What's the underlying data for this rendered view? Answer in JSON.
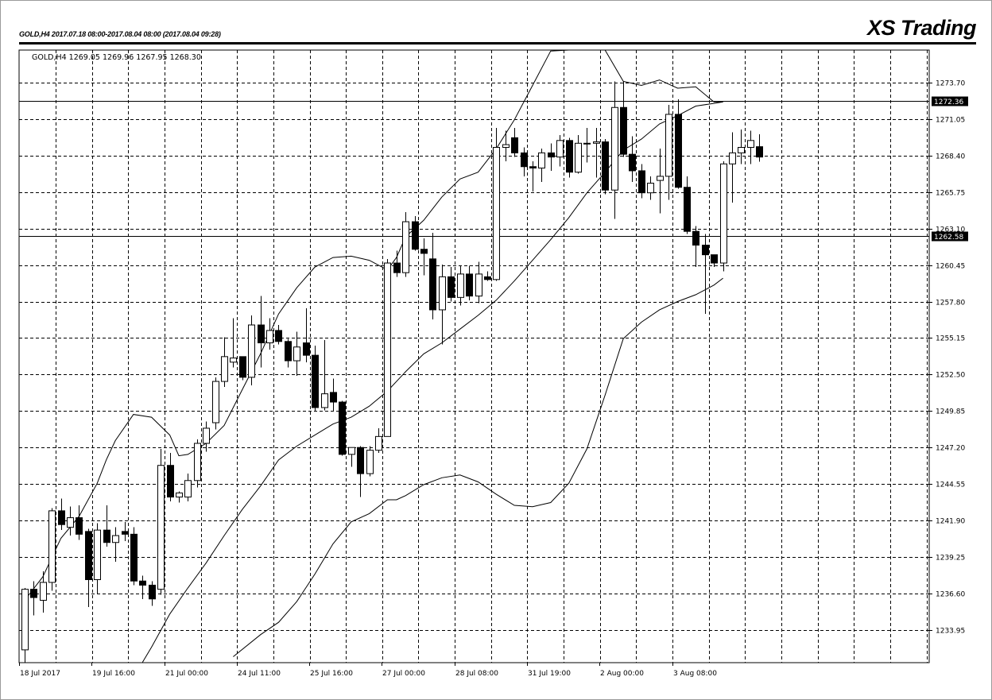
{
  "header": {
    "meta": "GOLD,H4  2017.07.18 08:00-2017.08.04 08:00  (2017.08.04 09:28)",
    "brand": "XS Trading"
  },
  "chart_data": {
    "type": "candlestick",
    "symbol_info": "GOLD,H4  1269.05 1269.96 1267.95 1268.30",
    "ylim": [
      1231.57,
      1276.07
    ],
    "y_ticks": [
      "1273.70",
      "1271.05",
      "1268.40",
      "1265.75",
      "1263.10",
      "1260.45",
      "1257.80",
      "1255.15",
      "1252.50",
      "1249.85",
      "1247.20",
      "1244.55",
      "1241.90",
      "1239.25",
      "1236.60",
      "1233.95"
    ],
    "x_tick_labels": [
      "18 Jul 2017",
      "19 Jul 16:00",
      "21 Jul 00:00",
      "24 Jul 11:00",
      "25 Jul 16:00",
      "27 Jul 00:00",
      "28 Jul 08:00",
      "31 Jul 19:00",
      "2 Aug 00:00",
      "3 Aug 08:00"
    ],
    "x_tick_index": [
      0,
      8,
      16,
      24,
      32,
      40,
      48,
      56,
      64,
      72
    ],
    "horizontal_lines": [
      {
        "label": "1272.36",
        "value": 1272.36
      },
      {
        "label": "1262.58",
        "value": 1262.58
      }
    ],
    "candles": [
      {
        "o": 1232.5,
        "h": 1237.0,
        "l": 1231.6,
        "c": 1236.9
      },
      {
        "o": 1236.9,
        "h": 1237.5,
        "l": 1235.0,
        "c": 1236.3
      },
      {
        "o": 1236.1,
        "h": 1238.2,
        "l": 1235.2,
        "c": 1237.4
      },
      {
        "o": 1237.4,
        "h": 1242.8,
        "l": 1236.8,
        "c": 1242.6
      },
      {
        "o": 1242.6,
        "h": 1243.5,
        "l": 1241.2,
        "c": 1241.6
      },
      {
        "o": 1241.4,
        "h": 1242.9,
        "l": 1240.8,
        "c": 1242.1
      },
      {
        "o": 1242.1,
        "h": 1243.0,
        "l": 1240.5,
        "c": 1240.9
      },
      {
        "o": 1241.1,
        "h": 1241.3,
        "l": 1235.6,
        "c": 1237.6
      },
      {
        "o": 1237.6,
        "h": 1241.7,
        "l": 1236.6,
        "c": 1241.2
      },
      {
        "o": 1241.2,
        "h": 1243.0,
        "l": 1240.0,
        "c": 1240.3
      },
      {
        "o": 1240.3,
        "h": 1241.4,
        "l": 1238.9,
        "c": 1240.8
      },
      {
        "o": 1241.1,
        "h": 1241.8,
        "l": 1240.4,
        "c": 1240.9
      },
      {
        "o": 1240.9,
        "h": 1241.4,
        "l": 1237.2,
        "c": 1237.5
      },
      {
        "o": 1237.5,
        "h": 1237.9,
        "l": 1236.2,
        "c": 1237.2
      },
      {
        "o": 1237.2,
        "h": 1237.5,
        "l": 1235.7,
        "c": 1236.2
      },
      {
        "o": 1236.9,
        "h": 1247.1,
        "l": 1236.5,
        "c": 1245.9
      },
      {
        "o": 1245.9,
        "h": 1246.8,
        "l": 1243.3,
        "c": 1243.6
      },
      {
        "o": 1243.6,
        "h": 1244.0,
        "l": 1243.2,
        "c": 1243.9
      },
      {
        "o": 1243.6,
        "h": 1245.3,
        "l": 1243.3,
        "c": 1244.8
      },
      {
        "o": 1244.8,
        "h": 1247.8,
        "l": 1244.3,
        "c": 1247.5
      },
      {
        "o": 1247.5,
        "h": 1249.1,
        "l": 1246.9,
        "c": 1248.6
      },
      {
        "o": 1249.0,
        "h": 1252.3,
        "l": 1248.5,
        "c": 1252.0
      },
      {
        "o": 1252.0,
        "h": 1255.2,
        "l": 1251.6,
        "c": 1253.8
      },
      {
        "o": 1253.4,
        "h": 1256.6,
        "l": 1253.0,
        "c": 1253.7
      },
      {
        "o": 1253.8,
        "h": 1253.8,
        "l": 1252.1,
        "c": 1252.3
      },
      {
        "o": 1252.3,
        "h": 1256.8,
        "l": 1251.7,
        "c": 1256.1
      },
      {
        "o": 1256.1,
        "h": 1258.2,
        "l": 1253.0,
        "c": 1254.8
      },
      {
        "o": 1254.8,
        "h": 1256.6,
        "l": 1254.3,
        "c": 1255.7
      },
      {
        "o": 1255.7,
        "h": 1256.1,
        "l": 1254.7,
        "c": 1254.9
      },
      {
        "o": 1254.9,
        "h": 1255.1,
        "l": 1253.0,
        "c": 1253.5
      },
      {
        "o": 1253.5,
        "h": 1255.6,
        "l": 1252.4,
        "c": 1254.5
      },
      {
        "o": 1254.8,
        "h": 1257.3,
        "l": 1253.4,
        "c": 1253.9
      },
      {
        "o": 1253.9,
        "h": 1254.6,
        "l": 1249.8,
        "c": 1250.1
      },
      {
        "o": 1250.1,
        "h": 1255.0,
        "l": 1249.9,
        "c": 1251.1
      },
      {
        "o": 1251.2,
        "h": 1252.2,
        "l": 1249.8,
        "c": 1250.5
      },
      {
        "o": 1250.5,
        "h": 1250.6,
        "l": 1246.6,
        "c": 1246.7
      },
      {
        "o": 1246.7,
        "h": 1247.2,
        "l": 1245.8,
        "c": 1247.2
      },
      {
        "o": 1247.2,
        "h": 1247.3,
        "l": 1243.6,
        "c": 1245.3
      },
      {
        "o": 1245.3,
        "h": 1247.3,
        "l": 1245.1,
        "c": 1247.0
      },
      {
        "o": 1247.0,
        "h": 1248.6,
        "l": 1246.8,
        "c": 1248.0
      },
      {
        "o": 1248.0,
        "h": 1260.9,
        "l": 1248.0,
        "c": 1260.6
      },
      {
        "o": 1260.6,
        "h": 1261.5,
        "l": 1259.6,
        "c": 1259.9
      },
      {
        "o": 1259.9,
        "h": 1264.3,
        "l": 1259.6,
        "c": 1263.6
      },
      {
        "o": 1263.6,
        "h": 1264.0,
        "l": 1261.5,
        "c": 1261.6
      },
      {
        "o": 1261.6,
        "h": 1262.4,
        "l": 1259.7,
        "c": 1261.3
      },
      {
        "o": 1260.9,
        "h": 1262.8,
        "l": 1256.5,
        "c": 1257.2
      },
      {
        "o": 1257.2,
        "h": 1260.5,
        "l": 1254.7,
        "c": 1259.6
      },
      {
        "o": 1259.6,
        "h": 1260.3,
        "l": 1257.8,
        "c": 1258.1
      },
      {
        "o": 1258.1,
        "h": 1260.4,
        "l": 1257.5,
        "c": 1259.8
      },
      {
        "o": 1259.8,
        "h": 1260.4,
        "l": 1257.9,
        "c": 1258.2
      },
      {
        "o": 1258.2,
        "h": 1260.7,
        "l": 1257.7,
        "c": 1259.8
      },
      {
        "o": 1259.6,
        "h": 1260.0,
        "l": 1259.3,
        "c": 1259.4
      },
      {
        "o": 1259.4,
        "h": 1270.4,
        "l": 1259.3,
        "c": 1269.0
      },
      {
        "o": 1269.0,
        "h": 1270.2,
        "l": 1268.0,
        "c": 1269.2
      },
      {
        "o": 1269.7,
        "h": 1270.4,
        "l": 1268.3,
        "c": 1268.6
      },
      {
        "o": 1268.6,
        "h": 1269.0,
        "l": 1266.9,
        "c": 1267.6
      },
      {
        "o": 1267.6,
        "h": 1268.0,
        "l": 1265.8,
        "c": 1267.5
      },
      {
        "o": 1267.5,
        "h": 1268.9,
        "l": 1266.5,
        "c": 1268.6
      },
      {
        "o": 1268.6,
        "h": 1269.3,
        "l": 1267.3,
        "c": 1268.3
      },
      {
        "o": 1268.3,
        "h": 1269.9,
        "l": 1267.6,
        "c": 1269.5
      },
      {
        "o": 1269.5,
        "h": 1269.7,
        "l": 1266.8,
        "c": 1267.2
      },
      {
        "o": 1267.2,
        "h": 1269.9,
        "l": 1267.1,
        "c": 1269.3
      },
      {
        "o": 1269.3,
        "h": 1270.4,
        "l": 1267.9,
        "c": 1269.3
      },
      {
        "o": 1269.3,
        "h": 1270.4,
        "l": 1266.8,
        "c": 1269.4
      },
      {
        "o": 1269.4,
        "h": 1269.6,
        "l": 1265.6,
        "c": 1265.9
      },
      {
        "o": 1265.9,
        "h": 1273.8,
        "l": 1263.8,
        "c": 1271.9
      },
      {
        "o": 1271.9,
        "h": 1273.8,
        "l": 1268.3,
        "c": 1268.5
      },
      {
        "o": 1268.5,
        "h": 1269.8,
        "l": 1266.5,
        "c": 1267.3
      },
      {
        "o": 1267.3,
        "h": 1267.8,
        "l": 1265.3,
        "c": 1265.7
      },
      {
        "o": 1265.7,
        "h": 1266.9,
        "l": 1265.2,
        "c": 1266.4
      },
      {
        "o": 1266.6,
        "h": 1268.9,
        "l": 1264.2,
        "c": 1266.9
      },
      {
        "o": 1266.9,
        "h": 1272.1,
        "l": 1265.2,
        "c": 1271.4
      },
      {
        "o": 1271.4,
        "h": 1272.5,
        "l": 1266.0,
        "c": 1266.1
      },
      {
        "o": 1266.1,
        "h": 1266.9,
        "l": 1262.7,
        "c": 1262.9
      },
      {
        "o": 1262.9,
        "h": 1263.3,
        "l": 1260.3,
        "c": 1261.9
      },
      {
        "o": 1261.9,
        "h": 1262.7,
        "l": 1256.9,
        "c": 1261.2
      },
      {
        "o": 1261.2,
        "h": 1261.2,
        "l": 1260.3,
        "c": 1260.6
      },
      {
        "o": 1260.6,
        "h": 1268.0,
        "l": 1260.0,
        "c": 1267.8
      },
      {
        "o": 1267.8,
        "h": 1270.1,
        "l": 1265.0,
        "c": 1268.6
      },
      {
        "o": 1268.6,
        "h": 1270.3,
        "l": 1267.8,
        "c": 1269.0
      },
      {
        "o": 1269.0,
        "h": 1270.2,
        "l": 1267.8,
        "c": 1269.5
      },
      {
        "o": 1269.05,
        "h": 1269.96,
        "l": 1267.95,
        "c": 1268.3
      }
    ],
    "bands": {
      "upper": [
        [
          0,
          1236.1
        ],
        [
          2,
          1237.8
        ],
        [
          4,
          1240.6
        ],
        [
          6,
          1242.2
        ],
        [
          8,
          1244.6
        ],
        [
          9,
          1246.3
        ],
        [
          10,
          1247.7
        ],
        [
          12,
          1249.6
        ],
        [
          14,
          1249.4
        ],
        [
          16,
          1248.1
        ],
        [
          17,
          1246.6
        ],
        [
          18,
          1246.7
        ],
        [
          20,
          1247.5
        ],
        [
          22,
          1248.8
        ],
        [
          24,
          1251.4
        ],
        [
          26,
          1254.0
        ],
        [
          28,
          1256.9
        ],
        [
          30,
          1258.8
        ],
        [
          32,
          1260.3
        ],
        [
          34,
          1261.0
        ],
        [
          36,
          1261.1
        ],
        [
          38,
          1260.8
        ],
        [
          40,
          1260.1
        ],
        [
          41,
          1261.0
        ],
        [
          42,
          1262.5
        ],
        [
          44,
          1263.7
        ],
        [
          46,
          1265.4
        ],
        [
          48,
          1266.7
        ],
        [
          50,
          1267.2
        ],
        [
          52,
          1268.9
        ],
        [
          54,
          1271.0
        ],
        [
          56,
          1273.5
        ],
        [
          58,
          1276.0
        ],
        [
          60,
          1278.0
        ],
        [
          62,
          1278.4
        ],
        [
          64,
          1276.6
        ],
        [
          66,
          1273.8
        ],
        [
          68,
          1273.5
        ],
        [
          70,
          1273.9
        ],
        [
          72,
          1273.3
        ],
        [
          74,
          1273.4
        ],
        [
          76,
          1272.3
        ],
        [
          77,
          1272.3
        ]
      ],
      "middle": [
        [
          13,
          1231.6
        ],
        [
          14,
          1232.7
        ],
        [
          16,
          1235.1
        ],
        [
          18,
          1237.0
        ],
        [
          20,
          1238.8
        ],
        [
          22,
          1240.8
        ],
        [
          24,
          1242.7
        ],
        [
          26,
          1244.4
        ],
        [
          28,
          1246.3
        ],
        [
          30,
          1247.3
        ],
        [
          32,
          1248.1
        ],
        [
          34,
          1248.9
        ],
        [
          36,
          1249.4
        ],
        [
          38,
          1250.2
        ],
        [
          40,
          1251.3
        ],
        [
          42,
          1252.7
        ],
        [
          44,
          1254.0
        ],
        [
          46,
          1254.8
        ],
        [
          48,
          1255.8
        ],
        [
          50,
          1256.8
        ],
        [
          52,
          1257.9
        ],
        [
          54,
          1259.3
        ],
        [
          56,
          1260.8
        ],
        [
          58,
          1262.3
        ],
        [
          60,
          1263.9
        ],
        [
          62,
          1265.7
        ],
        [
          64,
          1267.2
        ],
        [
          66,
          1268.8
        ],
        [
          68,
          1269.6
        ],
        [
          70,
          1270.7
        ],
        [
          72,
          1271.3
        ],
        [
          74,
          1272.0
        ],
        [
          76,
          1272.2
        ],
        [
          77,
          1272.3
        ]
      ],
      "lower": [
        [
          23,
          1232.0
        ],
        [
          26,
          1233.6
        ],
        [
          28,
          1234.5
        ],
        [
          30,
          1236.0
        ],
        [
          32,
          1238.0
        ],
        [
          34,
          1240.2
        ],
        [
          36,
          1241.8
        ],
        [
          38,
          1242.4
        ],
        [
          40,
          1243.4
        ],
        [
          41,
          1243.4
        ],
        [
          42,
          1243.7
        ],
        [
          44,
          1244.5
        ],
        [
          46,
          1245.0
        ],
        [
          48,
          1245.2
        ],
        [
          50,
          1244.7
        ],
        [
          52,
          1243.8
        ],
        [
          54,
          1243.0
        ],
        [
          56,
          1242.9
        ],
        [
          58,
          1243.2
        ],
        [
          60,
          1244.6
        ],
        [
          62,
          1247.1
        ],
        [
          64,
          1251.0
        ],
        [
          66,
          1255.1
        ],
        [
          68,
          1256.3
        ],
        [
          70,
          1257.2
        ],
        [
          72,
          1257.8
        ],
        [
          74,
          1258.3
        ],
        [
          76,
          1259.0
        ],
        [
          77,
          1259.5
        ]
      ]
    }
  }
}
